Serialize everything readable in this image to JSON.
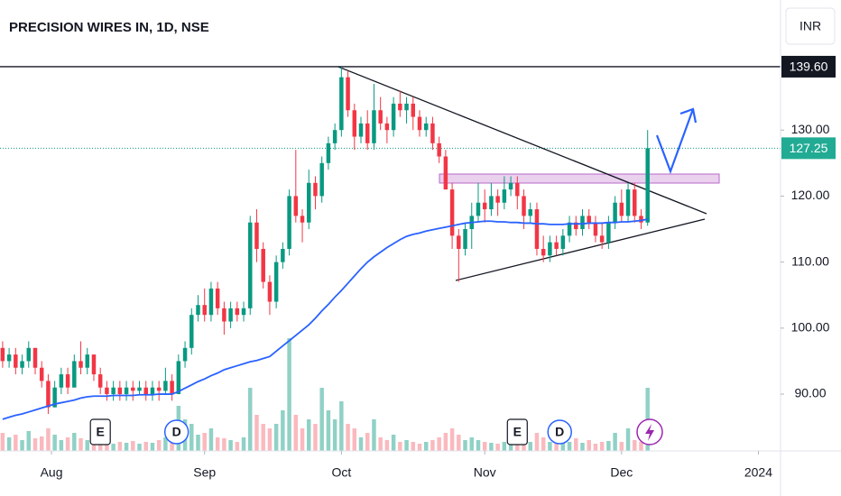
{
  "chart_data": {
    "type": "candlestick",
    "title": "PRECISION WIRES IN, 1D, NSE",
    "currency": "INR",
    "up_color": "#089981",
    "down_color": "#f23645",
    "ma_color": "#2962ff",
    "xlim": [
      -0.4,
      119.4
    ],
    "ylim": [
      81.4,
      149.7
    ],
    "yticks": [
      {
        "value": 90,
        "label": "90.00"
      },
      {
        "value": 100,
        "label": "100.00"
      },
      {
        "value": 110,
        "label": "110.00"
      },
      {
        "value": 120,
        "label": "120.00"
      },
      {
        "value": 130,
        "label": "130.00"
      }
    ],
    "xticks": [
      {
        "value": 7.5,
        "label": "Aug"
      },
      {
        "value": 31,
        "label": "Sep"
      },
      {
        "value": 52,
        "label": "Oct"
      },
      {
        "value": 74,
        "label": "Nov"
      },
      {
        "value": 95,
        "label": "Dec"
      },
      {
        "value": 116,
        "label": "2024"
      }
    ],
    "open": [
      97,
      95,
      96,
      94,
      95,
      97,
      94,
      92,
      88,
      91,
      93,
      91,
      95,
      94,
      96,
      93,
      91,
      90,
      91,
      90,
      91,
      90.5,
      91,
      90,
      91,
      90.5,
      92,
      90,
      95,
      97,
      102,
      103.5,
      102,
      106,
      103,
      101,
      103,
      102,
      103,
      116,
      112,
      107,
      104,
      110,
      112,
      120,
      117,
      116,
      122,
      120,
      125,
      128,
      130,
      138,
      133,
      129,
      131,
      128,
      133,
      131,
      130,
      134,
      133,
      134,
      132,
      130,
      131,
      128,
      126,
      121,
      114,
      112,
      115,
      117,
      119,
      118,
      120,
      119,
      121,
      122,
      120,
      117,
      118,
      112,
      111,
      113,
      112,
      114,
      116,
      115,
      117,
      116,
      114,
      113,
      116,
      119,
      117,
      121,
      117,
      116
    ],
    "high": [
      98,
      97,
      97,
      96,
      98,
      97,
      95,
      93,
      92,
      94,
      94,
      96,
      98,
      97,
      96,
      94,
      92,
      92,
      92,
      92,
      92,
      92,
      92,
      92,
      92,
      94,
      93,
      96,
      98,
      103,
      105,
      106,
      107,
      107,
      104,
      104,
      104,
      104,
      117,
      118,
      113,
      108,
      111,
      113,
      121,
      127,
      118,
      124,
      123,
      126,
      129,
      131,
      139.6,
      139,
      134,
      132,
      133,
      137,
      135,
      132,
      135,
      136,
      135,
      135,
      133,
      132,
      132,
      129,
      127,
      122,
      115,
      116,
      119,
      122,
      121,
      122,
      121,
      123,
      123,
      123,
      121,
      119,
      119,
      114,
      114,
      114,
      115,
      117,
      117,
      118,
      118,
      117,
      116,
      117,
      120,
      121,
      122,
      122,
      118,
      130
    ],
    "low": [
      94,
      94,
      93,
      93,
      94,
      93,
      91,
      87,
      88,
      90,
      90,
      91,
      93,
      93,
      92,
      90,
      89,
      89,
      89,
      89,
      89,
      90,
      89,
      89,
      89,
      90,
      89,
      90,
      94,
      96,
      101,
      101,
      101,
      102,
      99,
      100,
      101,
      101,
      102,
      110,
      106,
      102,
      103,
      109,
      111,
      116,
      113,
      115,
      118,
      119,
      124,
      127,
      129,
      132,
      127,
      128,
      127,
      127,
      130,
      128,
      129,
      132,
      131,
      130,
      129,
      129,
      127,
      125,
      121,
      112,
      107,
      111,
      112,
      116,
      116,
      117,
      117,
      118,
      120,
      118,
      115,
      116,
      111,
      110,
      110,
      111,
      111,
      113,
      114,
      114,
      115,
      113,
      112,
      112,
      115,
      116,
      116,
      116,
      115,
      115.5
    ],
    "close": [
      95,
      96,
      94,
      95,
      97,
      94,
      92,
      88,
      91,
      93,
      91,
      95,
      94,
      96,
      93,
      91,
      90,
      91,
      90,
      91,
      90.5,
      91,
      90,
      91,
      90.5,
      92,
      90,
      95,
      97,
      102,
      103.5,
      102,
      106,
      103,
      101,
      103,
      102,
      103,
      116,
      112,
      107,
      104,
      110,
      112,
      120,
      117,
      116,
      122,
      120,
      125,
      128,
      130,
      138,
      133,
      129,
      131,
      128,
      133,
      131,
      130,
      134,
      133,
      134,
      132,
      130,
      131,
      128,
      126,
      121,
      114,
      112,
      115,
      117,
      119,
      118,
      120,
      119,
      121,
      122,
      120,
      117,
      118,
      112,
      111,
      113,
      112,
      114,
      116,
      115,
      117,
      116,
      114,
      113,
      116,
      119,
      117,
      121,
      117,
      116,
      127.25
    ],
    "volume": [
      20,
      15,
      18,
      12,
      22,
      14,
      16,
      25,
      18,
      12,
      15,
      20,
      14,
      12,
      18,
      10,
      12,
      8,
      10,
      9,
      11,
      8,
      10,
      9,
      12,
      15,
      14,
      50,
      35,
      30,
      18,
      20,
      25,
      15,
      14,
      12,
      10,
      15,
      70,
      40,
      30,
      25,
      30,
      45,
      125,
      40,
      25,
      35,
      30,
      70,
      45,
      35,
      55,
      30,
      25,
      15,
      20,
      35,
      15,
      12,
      18,
      10,
      12,
      10,
      8,
      10,
      12,
      15,
      20,
      25,
      18,
      12,
      15,
      12,
      10,
      9,
      8,
      10,
      9,
      7,
      8,
      10,
      20,
      15,
      10,
      9,
      12,
      10,
      14,
      9,
      12,
      8,
      10,
      11,
      20,
      10,
      25,
      12,
      10,
      70
    ],
    "ma": [
      86.2,
      86.5,
      86.8,
      87.0,
      87.3,
      87.6,
      87.9,
      88.2,
      88.5,
      88.7,
      88.9,
      89.1,
      89.4,
      89.6,
      89.7,
      89.7,
      89.7,
      89.8,
      89.8,
      89.8,
      89.8,
      89.9,
      89.9,
      89.9,
      90.0,
      90.0,
      90.0,
      90.4,
      90.9,
      91.4,
      91.9,
      92.3,
      92.8,
      93.2,
      93.7,
      94.0,
      94.3,
      94.6,
      94.9,
      95.1,
      95.4,
      95.7,
      96.5,
      97.3,
      98.1,
      98.9,
      99.7,
      100.5,
      101.5,
      102.6,
      103.6,
      104.7,
      105.7,
      106.8,
      107.9,
      109.0,
      110.0,
      110.8,
      111.5,
      112.2,
      112.8,
      113.4,
      113.9,
      114.2,
      114.4,
      114.7,
      114.9,
      115.1,
      115.3,
      115.5,
      115.7,
      115.9,
      116.0,
      116.1,
      116.2,
      116.2,
      116.1,
      116.1,
      116.0,
      116.0,
      115.9,
      115.9,
      115.8,
      115.8,
      115.7,
      115.7,
      115.7,
      115.8,
      115.8,
      115.8,
      115.9,
      115.9,
      115.9,
      116.0,
      116.0,
      116.1,
      116.1,
      116.2,
      116.3,
      116.5
    ],
    "hline": {
      "value": 139.6,
      "label": "139.60"
    },
    "last_price": {
      "value": 127.25,
      "label": "127.25"
    },
    "events": [
      {
        "label": "E",
        "index": 15
      },
      {
        "label": "D",
        "index": 26.7
      },
      {
        "label": "E",
        "index": 79
      },
      {
        "label": "D",
        "index": 85.5
      }
    ]
  }
}
